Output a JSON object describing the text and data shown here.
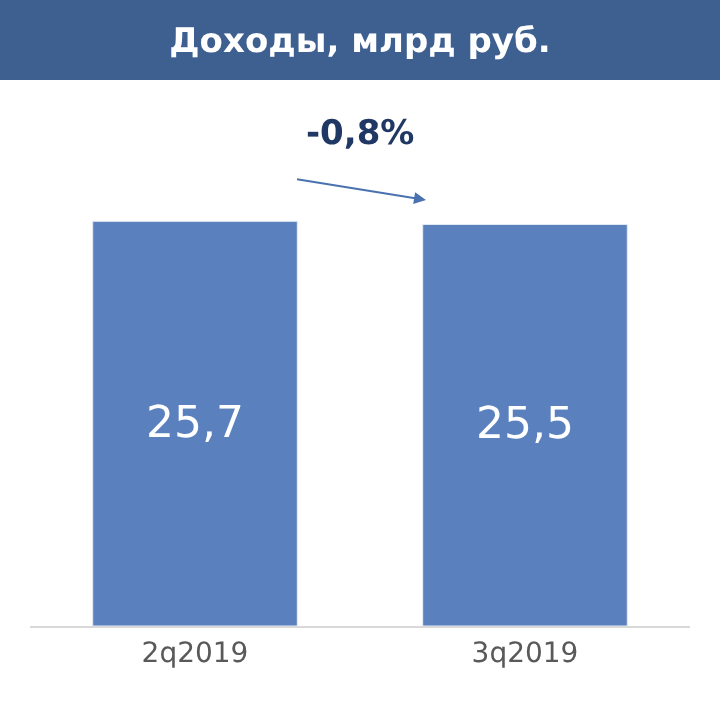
{
  "chart_data": {
    "type": "bar",
    "title": "Доходы, млрд руб.",
    "categories": [
      "2q2019",
      "3q2019"
    ],
    "values": [
      25.7,
      25.5
    ],
    "value_labels": [
      "25,7",
      "25,5"
    ],
    "color": "#5a81be",
    "annotations": [
      "-0,8%"
    ]
  }
}
